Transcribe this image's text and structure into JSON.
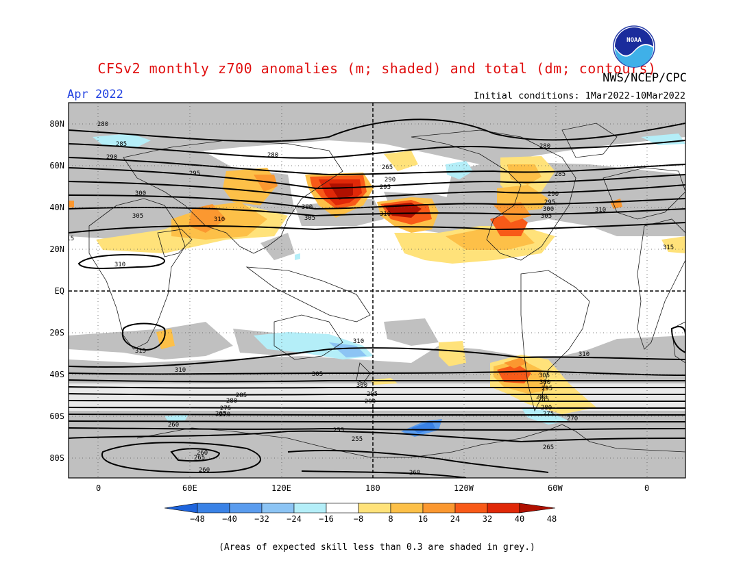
{
  "header": {
    "title": "CFSv2 monthly z700 anomalies (m; shaded) and total (dm; contours)",
    "agency": "NWS/NCEP/CPC",
    "period": "Apr 2022",
    "initial_conditions": "Initial conditions: 1Mar2022-10Mar2022"
  },
  "logo": {
    "text": "NOAA",
    "icon": "noaa-logo-icon"
  },
  "axes": {
    "lat_labels": [
      "80N",
      "60N",
      "40N",
      "20N",
      "EQ",
      "20S",
      "40S",
      "60S",
      "80S"
    ],
    "lon_labels": [
      "0",
      "60E",
      "120E",
      "180",
      "120W",
      "60W",
      "0"
    ]
  },
  "contour_labels": [
    "280",
    "285",
    "290",
    "295",
    "300",
    "305",
    "310",
    "315",
    "310",
    "315",
    "280",
    "265",
    "290",
    "295",
    "300",
    "305",
    "310",
    "280",
    "285",
    "290",
    "295",
    "300",
    "305",
    "310",
    "315",
    "310",
    "310",
    "310",
    "305",
    "300",
    "295",
    "290",
    "285",
    "280",
    "275",
    "270",
    "265",
    "260",
    "255",
    "255",
    "260",
    "265",
    "260",
    "265",
    "270",
    "275",
    "280",
    "285",
    "290",
    "295",
    "300",
    "305",
    "260"
  ],
  "colorbar": {
    "labels": [
      "-48",
      "-40",
      "-32",
      "-24",
      "-16",
      "-8",
      "8",
      "16",
      "24",
      "32",
      "40",
      "48"
    ],
    "colors": [
      "#1e64dc",
      "#3a82e6",
      "#5a9cee",
      "#8cc4f4",
      "#b4eef8",
      "#ffffff",
      "#ffe27a",
      "#fdc048",
      "#fb9830",
      "#f85a18",
      "#e02808",
      "#b01000"
    ]
  },
  "colors": {
    "skill_grey": "#c0c0c0",
    "title_red": "#e01010",
    "period_blue": "#1f3fe0"
  },
  "footer": "(Areas of expected skill less than 0.3 are shaded in grey.)"
}
